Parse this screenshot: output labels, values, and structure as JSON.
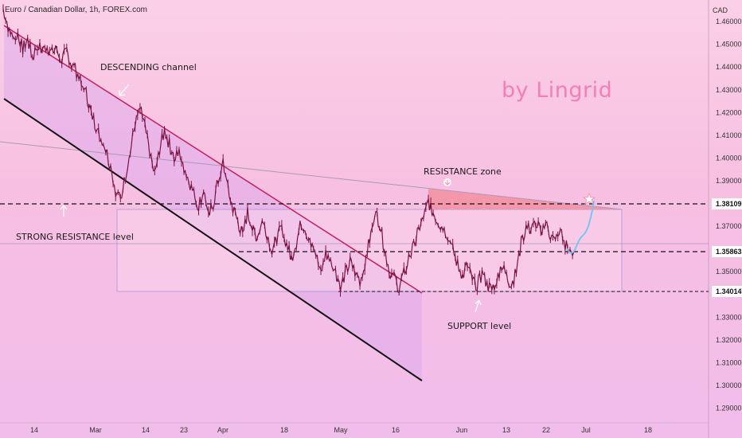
{
  "header": {
    "title": "Euro / Canadian Dollar, 1h, FOREX.com",
    "currency": "CAD"
  },
  "watermark": "by Lingrid",
  "annotations": {
    "descending": "DESCENDING channel",
    "resistance_zone": "RESISTANCE zone",
    "strong_resistance": "STRONG RESISTANCE level",
    "support": "SUPPORT level"
  },
  "chart_data": {
    "type": "line",
    "title": "Euro / Canadian Dollar, 1h, FOREX.com",
    "xlabel": "",
    "ylabel": "",
    "ylim": [
      1.2835,
      1.4695
    ],
    "y_ticks": [
      "1.46000",
      "1.45000",
      "1.44000",
      "1.43000",
      "1.42000",
      "1.41000",
      "1.40000",
      "1.39000",
      "1.37000",
      "1.35000",
      "1.33000",
      "1.32000",
      "1.31000",
      "1.30000",
      "1.29000"
    ],
    "x_ticks": [
      "14",
      "Mar",
      "14",
      "23",
      "Apr",
      "18",
      "May",
      "16",
      "Jun",
      "13",
      "22",
      "Jul",
      "18"
    ],
    "price_levels": {
      "resistance": "1.38109",
      "mid": "1.35863",
      "support": "1.34014"
    },
    "colors": {
      "candles": "#7a1240",
      "upper_channel": "#c21f5a",
      "lower_channel": "#111111",
      "resistance_zone": "#f48fa0",
      "projection": "#6ec6f0"
    },
    "series": [
      {
        "values": [
          1.466,
          1.458,
          1.452,
          1.455,
          1.448,
          1.452,
          1.444,
          1.45,
          1.447,
          1.449,
          1.446,
          1.448,
          1.443,
          1.447,
          1.441,
          1.438,
          1.432,
          1.428,
          1.42,
          1.414,
          1.408,
          1.404,
          1.396,
          1.386,
          1.381,
          1.392,
          1.402,
          1.416,
          1.422,
          1.414,
          1.401,
          1.393,
          1.404,
          1.412,
          1.406,
          1.4,
          1.402,
          1.396,
          1.39,
          1.384,
          1.379,
          1.386,
          1.374,
          1.38,
          1.39,
          1.398,
          1.386,
          1.378,
          1.372,
          1.366,
          1.376,
          1.369,
          1.365,
          1.372,
          1.367,
          1.36,
          1.364,
          1.37,
          1.362,
          1.356,
          1.363,
          1.372,
          1.368,
          1.361,
          1.357,
          1.351,
          1.358,
          1.354,
          1.35,
          1.344,
          1.349,
          1.354,
          1.35,
          1.346,
          1.354,
          1.364,
          1.376,
          1.372,
          1.36,
          1.351,
          1.347,
          1.343,
          1.349,
          1.356,
          1.361,
          1.368,
          1.373,
          1.381,
          1.376,
          1.372,
          1.369,
          1.366,
          1.36,
          1.353,
          1.348,
          1.353,
          1.347,
          1.344,
          1.349,
          1.344,
          1.342,
          1.347,
          1.353,
          1.348,
          1.344,
          1.35,
          1.362,
          1.37,
          1.368,
          1.372,
          1.367,
          1.371,
          1.366,
          1.363,
          1.368,
          1.362,
          1.359
        ]
      }
    ]
  }
}
